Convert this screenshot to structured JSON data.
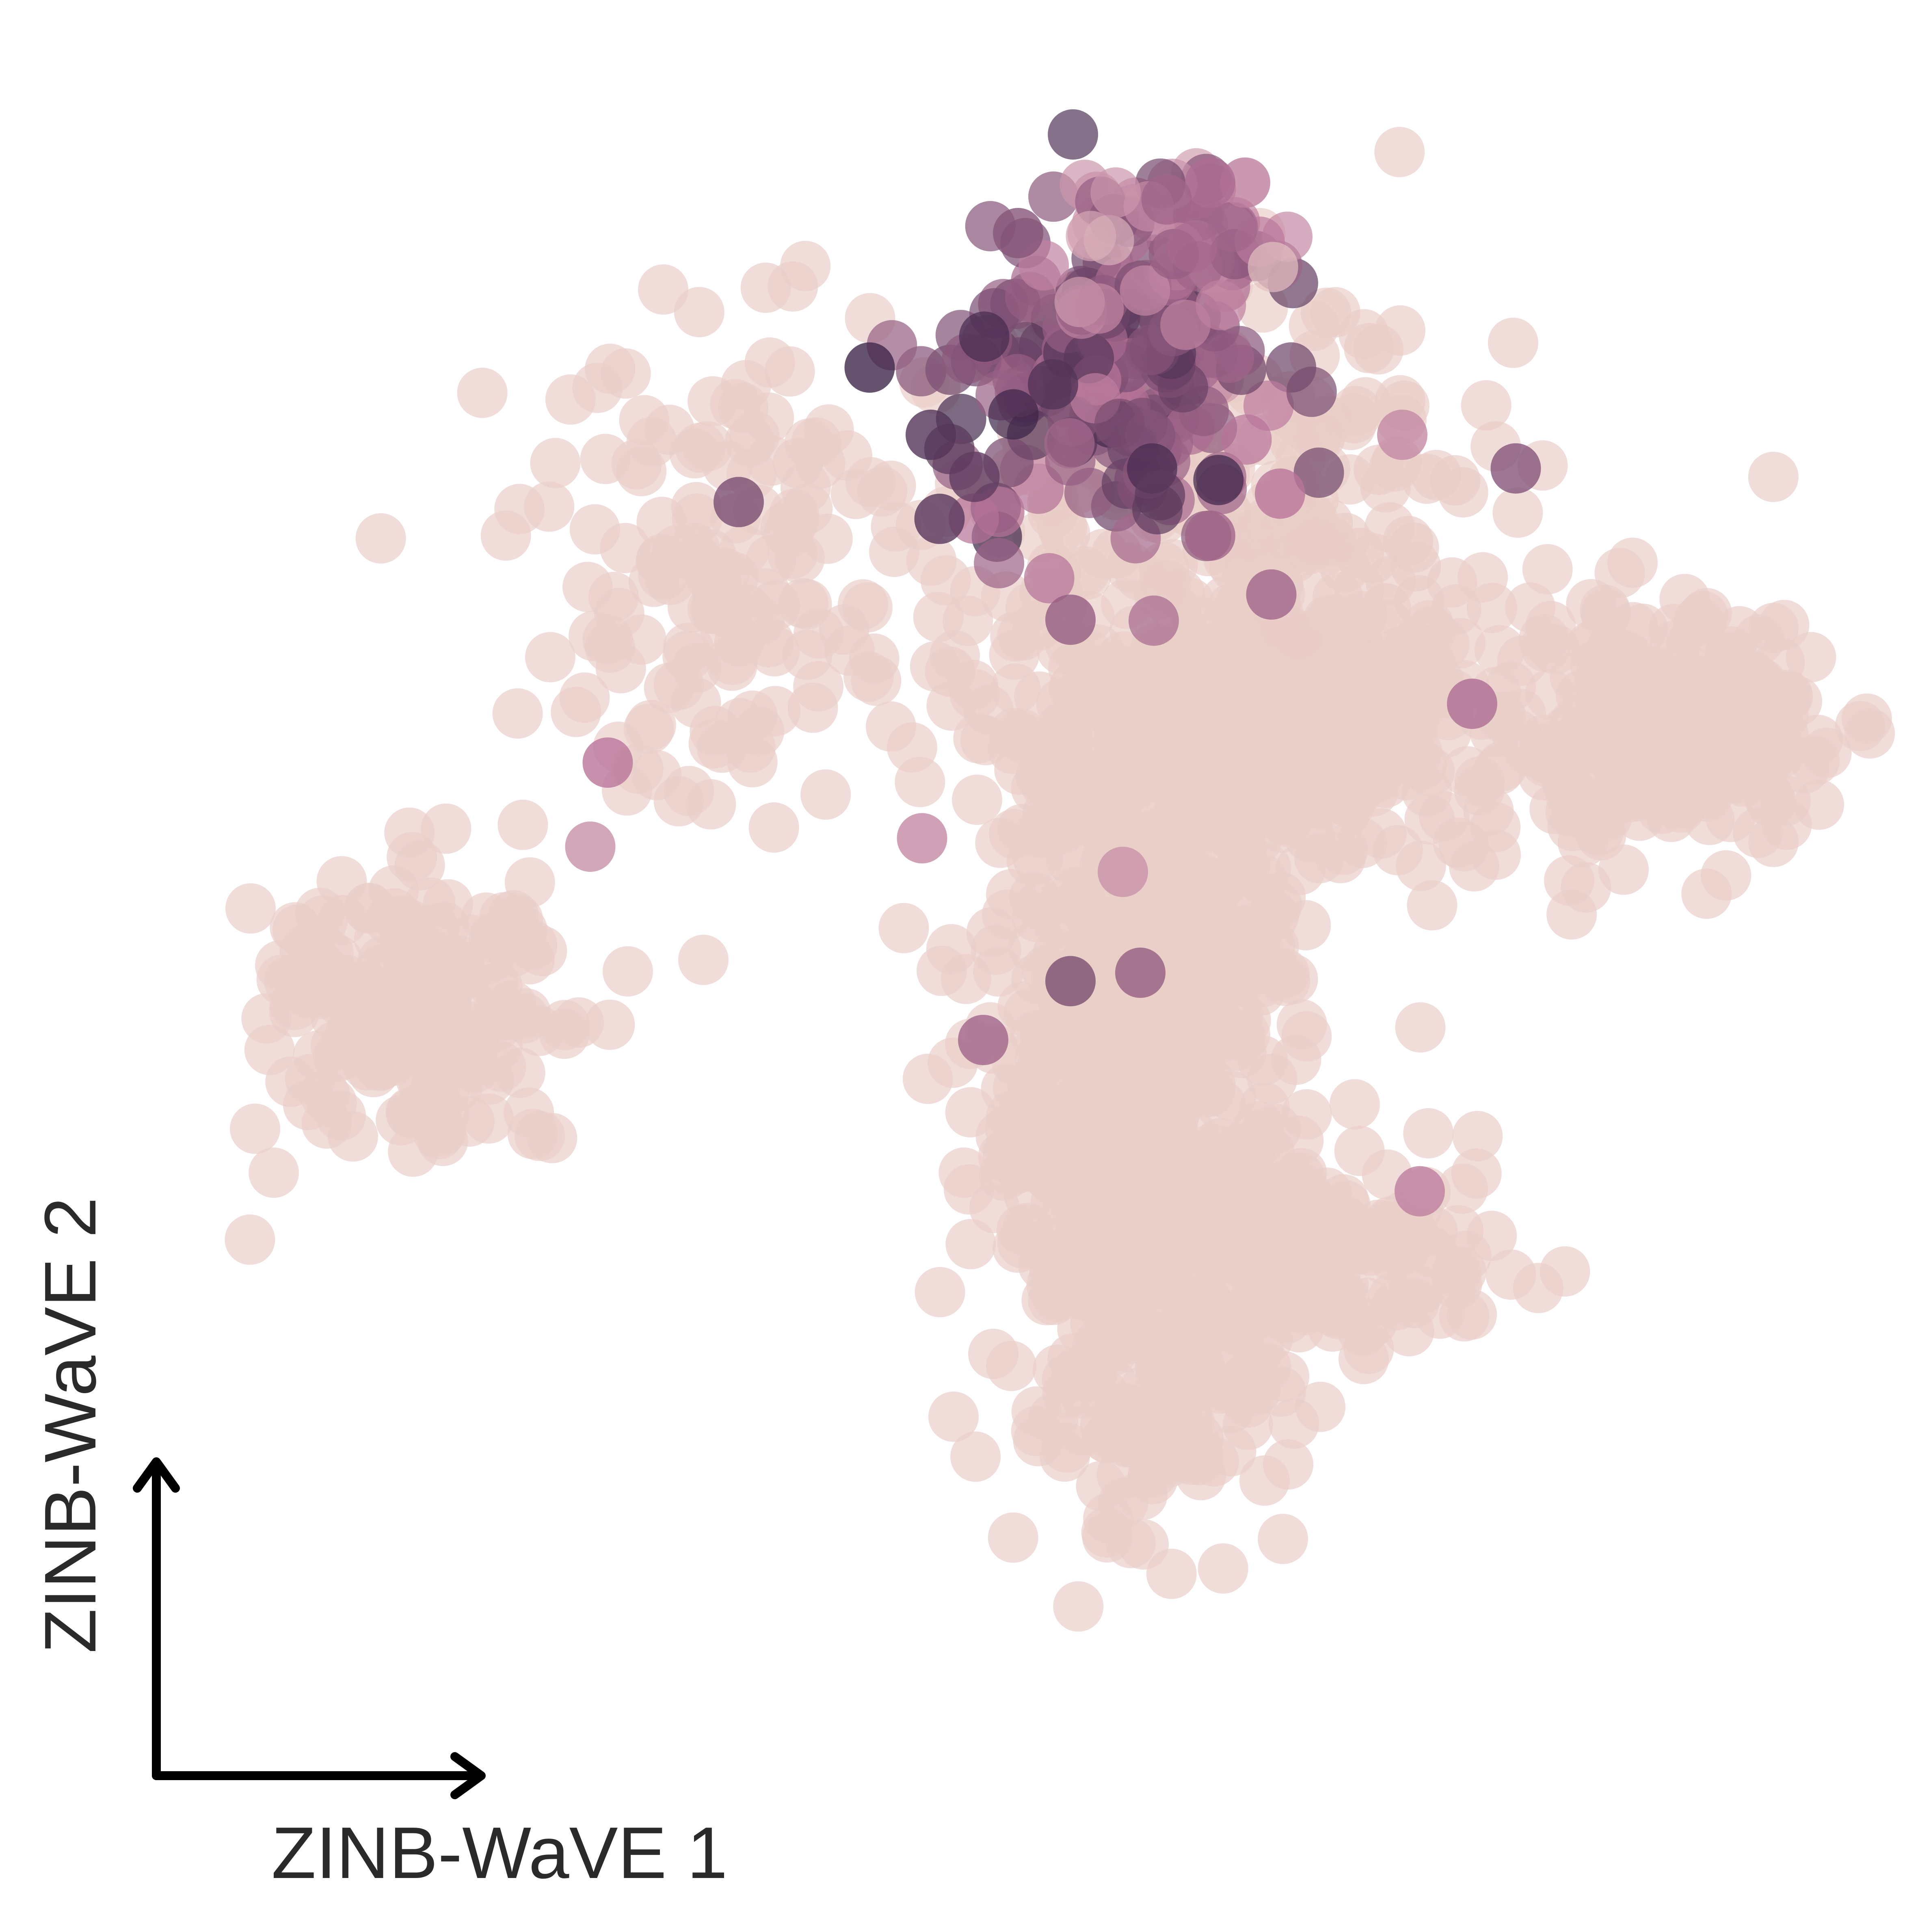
{
  "chart_data": {
    "type": "scatter",
    "title": "",
    "xlabel": "ZINB-WaVE 1",
    "ylabel": "ZINB-WaVE 2",
    "xlim": [
      0,
      100
    ],
    "ylim": [
      0,
      100
    ],
    "grid": false,
    "legend": "none",
    "axes_style": "arrows only, no ticks",
    "point_alpha": 0.7,
    "color_scale": {
      "low": "#ecd3cb",
      "mid": "#b9759a",
      "high": "#3a2447",
      "value_range": [
        0,
        1
      ]
    },
    "clusters": [
      {
        "name": "",
        "center": [
          15,
          44
        ],
        "spread": [
          5,
          4.5
        ],
        "n": 180,
        "level": 0.02
      },
      {
        "name": "",
        "center": [
          63,
          61
        ],
        "spread": [
          6.5,
          4.5
        ],
        "n": 420,
        "level": 0.02
      },
      {
        "name": "",
        "center": [
          86,
          60
        ],
        "spread": [
          4.5,
          3.5
        ],
        "n": 250,
        "level": 0.02
      },
      {
        "name": "",
        "center": [
          56,
          39
        ],
        "spread": [
          4.5,
          11
        ],
        "n": 620,
        "level": 0.02
      },
      {
        "name": "",
        "center": [
          60,
          75
        ],
        "spread": [
          9,
          6
        ],
        "n": 180,
        "level": 0.03
      },
      {
        "name": "",
        "center": [
          34,
          70
        ],
        "spread": [
          7,
          7
        ],
        "n": 160,
        "level": 0.02
      },
      {
        "name": "",
        "center": [
          68,
          29
        ],
        "spread": [
          5,
          3
        ],
        "n": 110,
        "level": 0.02
      },
      {
        "name": "",
        "center": [
          57,
          22
        ],
        "spread": [
          3.5,
          4
        ],
        "n": 70,
        "level": 0.02
      },
      {
        "name": "",
        "center": [
          54,
          81
        ],
        "spread": [
          4.5,
          4.5
        ],
        "n": 160,
        "level": 0.72
      },
      {
        "name": "",
        "center": [
          58,
          89
        ],
        "spread": [
          3,
          3
        ],
        "n": 60,
        "level": 0.5
      }
    ],
    "highlighted_points": [
      {
        "x": 40.5,
        "y": 82,
        "value": 0.98
      },
      {
        "x": 44,
        "y": 78,
        "value": 0.9
      },
      {
        "x": 44.5,
        "y": 73,
        "value": 0.88
      },
      {
        "x": 46.5,
        "y": 75.5,
        "value": 0.85
      },
      {
        "x": 51,
        "y": 81,
        "value": 0.9
      },
      {
        "x": 49,
        "y": 90,
        "value": 0.7
      },
      {
        "x": 62,
        "y": 93,
        "value": 0.45
      },
      {
        "x": 60,
        "y": 93,
        "value": 0.55
      },
      {
        "x": 57.5,
        "y": 92,
        "value": 0.6
      },
      {
        "x": 33,
        "y": 74,
        "value": 0.75
      },
      {
        "x": 77.5,
        "y": 76,
        "value": 0.7
      },
      {
        "x": 60,
        "y": 72,
        "value": 0.6
      },
      {
        "x": 63.5,
        "y": 68.5,
        "value": 0.6
      },
      {
        "x": 52,
        "y": 67,
        "value": 0.65
      },
      {
        "x": 25.5,
        "y": 58.5,
        "value": 0.5
      },
      {
        "x": 24.5,
        "y": 53.5,
        "value": 0.35
      },
      {
        "x": 47,
        "y": 42,
        "value": 0.6
      },
      {
        "x": 52,
        "y": 45.5,
        "value": 0.75
      },
      {
        "x": 56,
        "y": 46,
        "value": 0.65
      },
      {
        "x": 43.5,
        "y": 54,
        "value": 0.4
      },
      {
        "x": 75,
        "y": 62,
        "value": 0.55
      },
      {
        "x": 71,
        "y": 78,
        "value": 0.4
      },
      {
        "x": 72,
        "y": 33,
        "value": 0.45
      },
      {
        "x": 55,
        "y": 52,
        "value": 0.35
      },
      {
        "x": 64,
        "y": 74.5,
        "value": 0.5
      }
    ]
  }
}
